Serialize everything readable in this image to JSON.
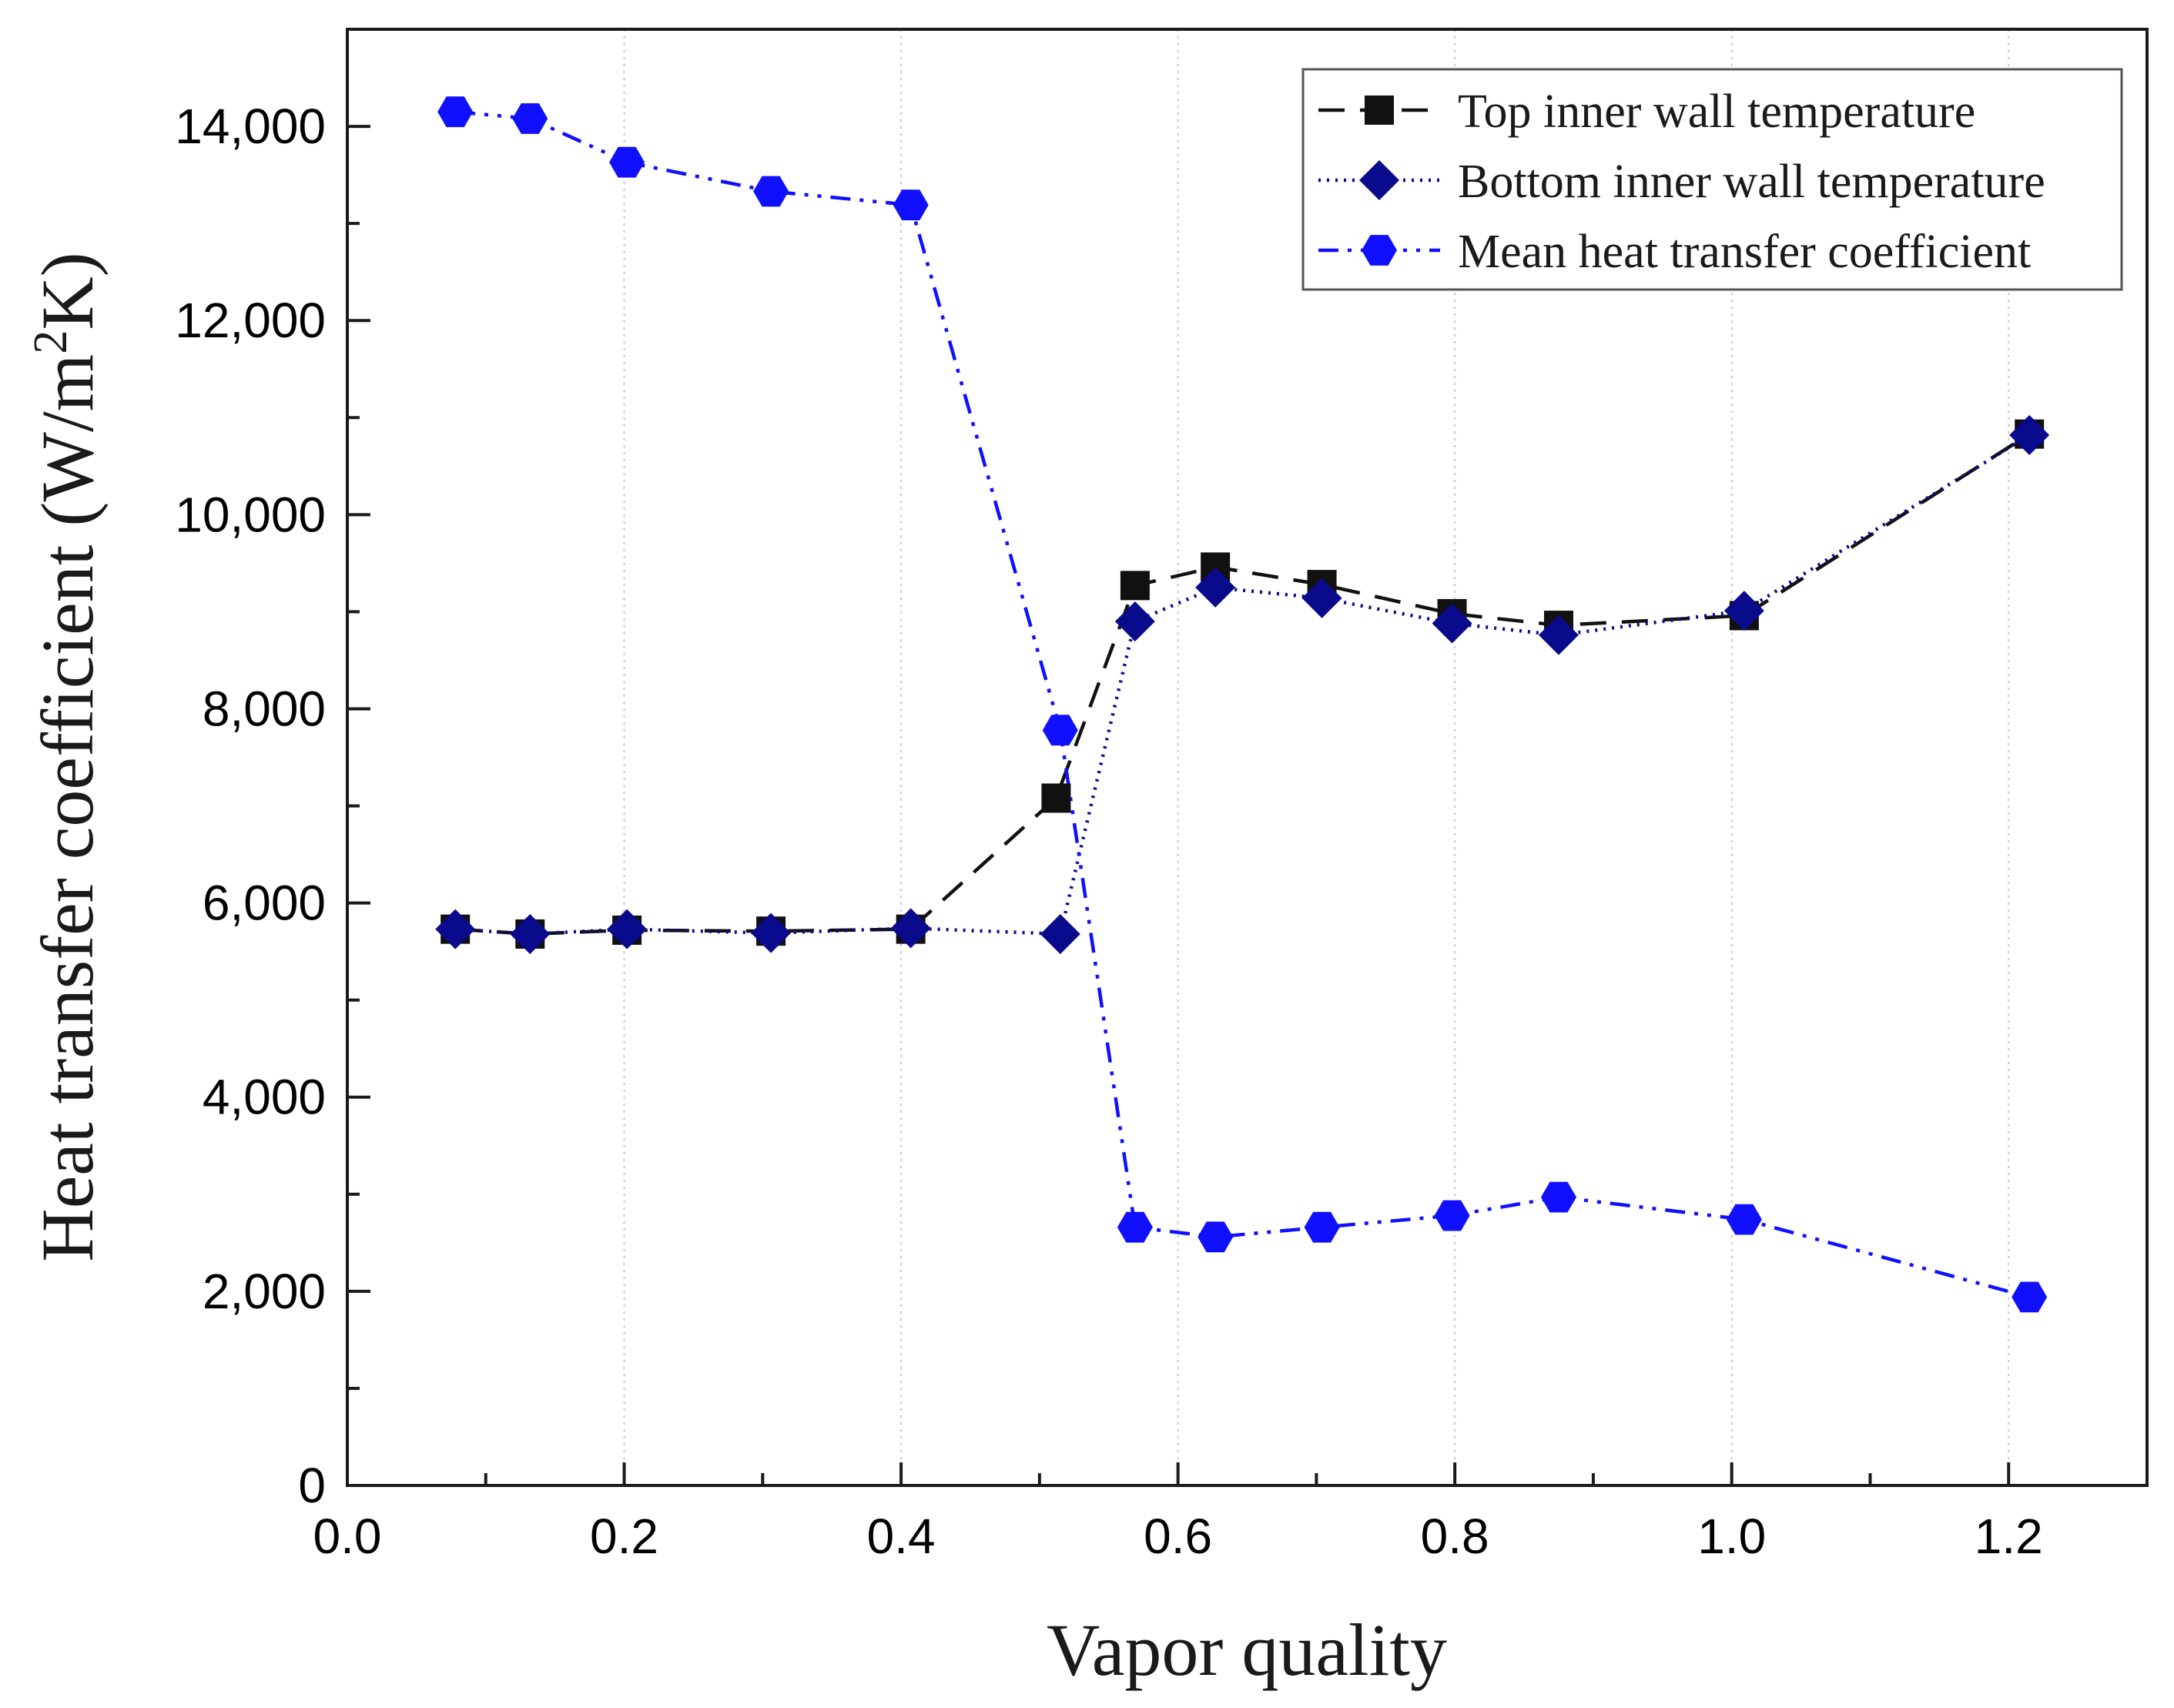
{
  "chart_data": {
    "type": "line",
    "title": "",
    "xlabel": "Vapor quality",
    "ylabel": {
      "main": "Heat transfer coefficient (W/m",
      "superscript": "2",
      "suffix": "K)"
    },
    "xlim": [
      0.0,
      1.3
    ],
    "ylim": [
      0,
      15000
    ],
    "xticks": [
      0.0,
      0.2,
      0.4,
      0.6,
      0.8,
      1.0,
      1.2
    ],
    "xtick_labels": [
      "0.0",
      "0.2",
      "0.4",
      "0.6",
      "0.8",
      "1.0",
      "1.2"
    ],
    "yticks": [
      0,
      2000,
      4000,
      6000,
      8000,
      10000,
      12000,
      14000
    ],
    "ytick_labels": [
      "0",
      "2,000",
      "4,000",
      "6,000",
      "8,000",
      "10,000",
      "12,000",
      "14,000"
    ],
    "grid": "vertical dotted at major x ticks",
    "legend_position": "top-right",
    "series": [
      {
        "name": "Top inner wall temperature",
        "marker": "square",
        "line_style": "dashed",
        "color": "#111111",
        "x": [
          0.078,
          0.132,
          0.202,
          0.306,
          0.407,
          0.512,
          0.569,
          0.627,
          0.704,
          0.798,
          0.875,
          1.009,
          1.215
        ],
        "y": [
          5730,
          5680,
          5720,
          5710,
          5730,
          7080,
          9270,
          9460,
          9280,
          8980,
          8860,
          8960,
          10830
        ]
      },
      {
        "name": "Bottom inner wall temperature",
        "marker": "diamond",
        "line_style": "dotted",
        "color": "#0a0a8c",
        "x": [
          0.078,
          0.132,
          0.202,
          0.306,
          0.407,
          0.515,
          0.569,
          0.627,
          0.704,
          0.798,
          0.875,
          1.009,
          1.215
        ],
        "y": [
          5730,
          5680,
          5730,
          5690,
          5740,
          5680,
          8900,
          9250,
          9140,
          8880,
          8760,
          9010,
          10820
        ]
      },
      {
        "name": "Mean heat transfer coefficient",
        "marker": "hexagon",
        "line_style": "dash-dot-dot",
        "color": "#1010ff",
        "x": [
          0.078,
          0.132,
          0.202,
          0.306,
          0.407,
          0.515,
          0.569,
          0.627,
          0.704,
          0.798,
          0.875,
          1.009,
          1.215
        ],
        "y": [
          14150,
          14080,
          13630,
          13330,
          13190,
          7780,
          2660,
          2560,
          2660,
          2780,
          2970,
          2740,
          1940
        ]
      }
    ]
  }
}
